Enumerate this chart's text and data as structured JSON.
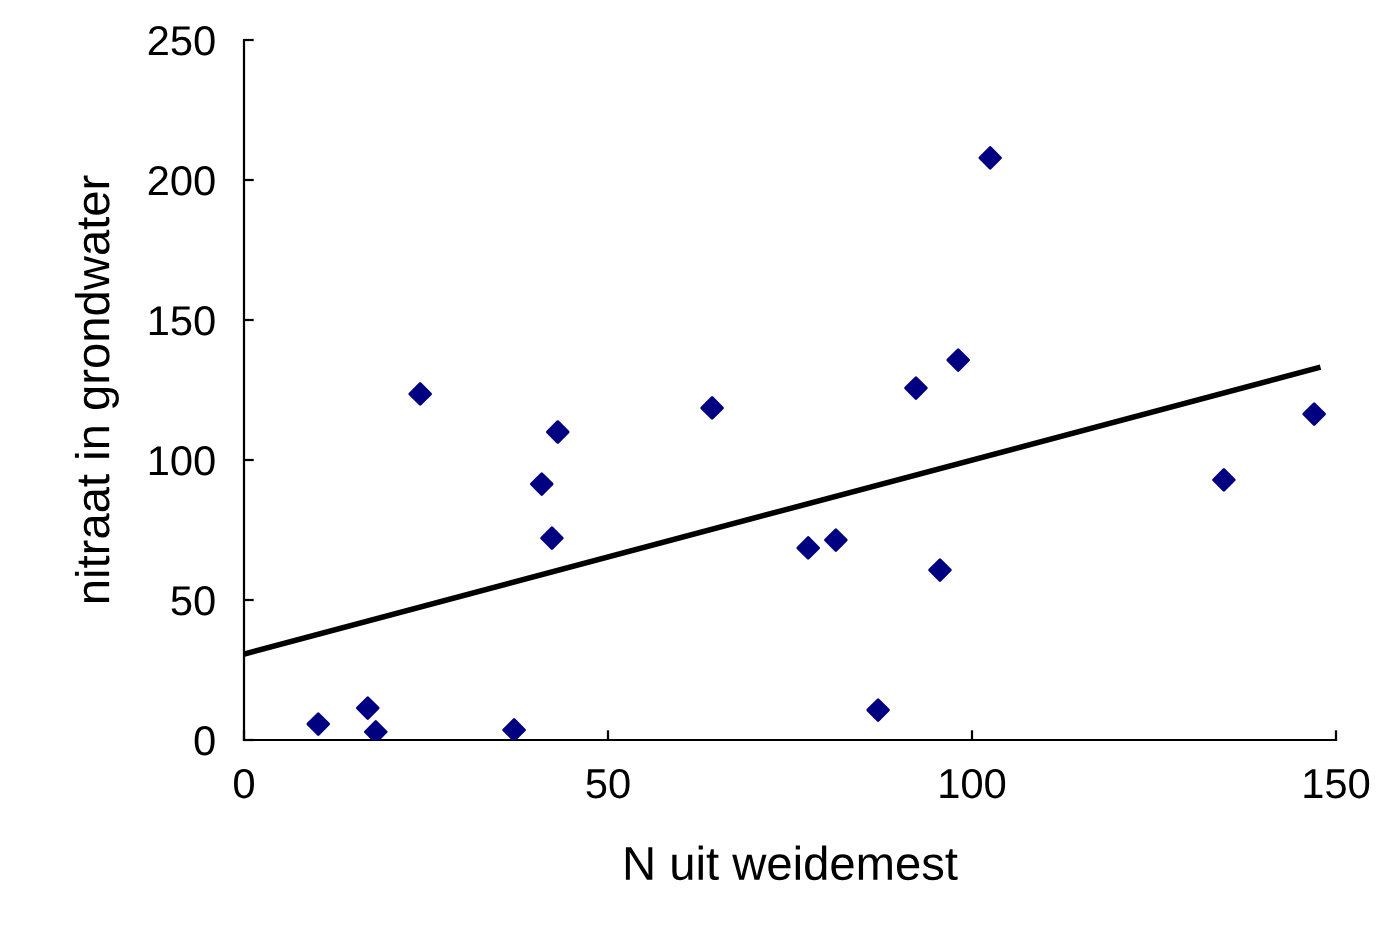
{
  "chart_data": {
    "type": "scatter",
    "xlabel": "N uit weidemest",
    "ylabel": "nitraat in grondwater",
    "xlim": [
      0,
      150
    ],
    "ylim": [
      0,
      250
    ],
    "xticks": [
      0,
      50,
      100,
      150
    ],
    "yticks": [
      0,
      50,
      100,
      150,
      200,
      250
    ],
    "grid": false,
    "series": [
      {
        "marker": "diamond",
        "color": "#000080",
        "x": [
          10.2,
          17.0,
          18.1,
          24.2,
          37.1,
          40.9,
          42.3,
          43.1,
          64.3,
          77.5,
          81.3,
          87.1,
          92.3,
          95.6,
          98.1,
          102.5,
          134.6,
          147.0
        ],
        "values": [
          5.7,
          11.4,
          2.9,
          123.6,
          3.6,
          91.4,
          72.1,
          110,
          118.6,
          68.6,
          71.4,
          10.7,
          125.7,
          60.7,
          135.7,
          207.9,
          92.9,
          116.4
        ]
      },
      {
        "type": "line",
        "marker": "none",
        "color": "#000000",
        "x": [
          0,
          147.5
        ],
        "values": [
          30.7,
          132.9
        ]
      }
    ]
  }
}
